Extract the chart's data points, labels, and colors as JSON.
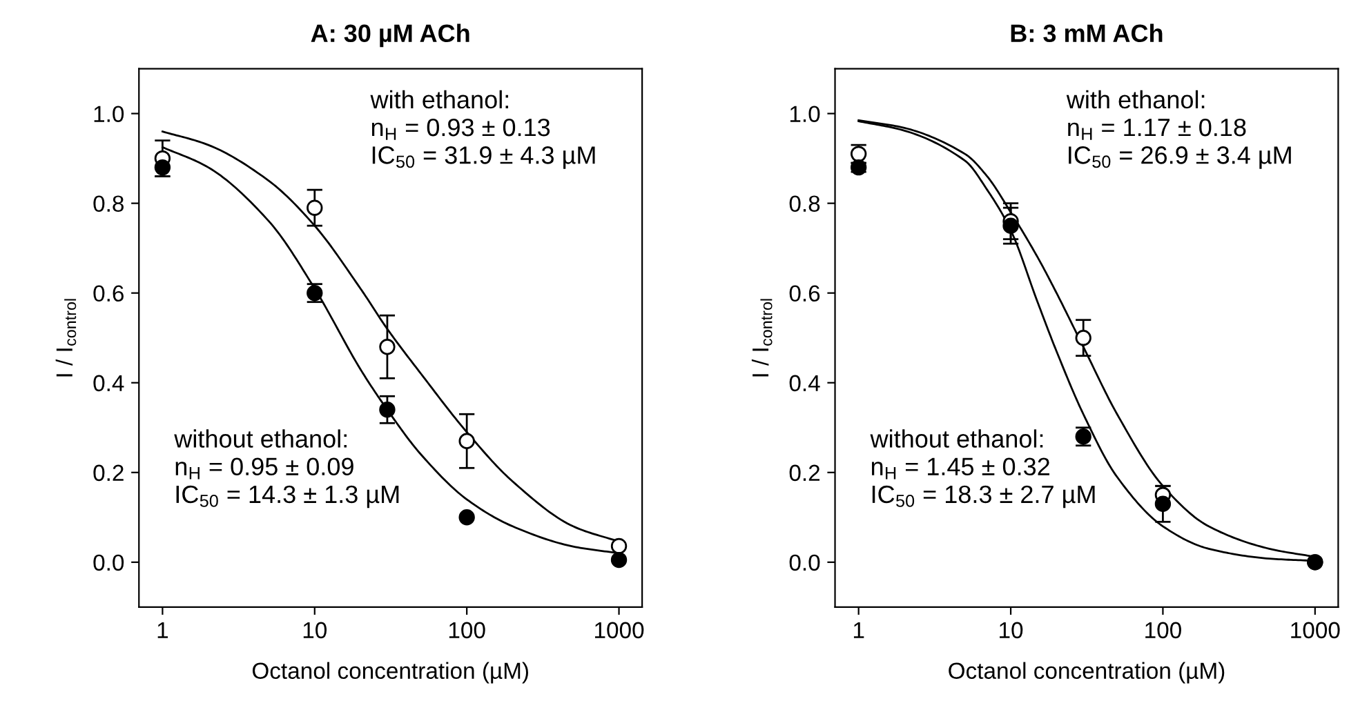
{
  "chart_data": [
    {
      "type": "scatter",
      "title": "A: 30 µM ACh",
      "xlabel": "Octanol concentration (µM)",
      "ylabel": "I / I$_{control}$",
      "log": "x",
      "xlim": [
        0.7,
        1420
      ],
      "xticks": [
        1,
        10,
        100,
        1000
      ],
      "ylim": [
        -0.1,
        1.1
      ],
      "yticks": [
        {
          "value": 0,
          "label": "0.0"
        },
        {
          "value": 0.2,
          "label": "0.2"
        },
        {
          "value": 0.4,
          "label": "0.4"
        },
        {
          "value": 0.6,
          "label": "0.6"
        },
        {
          "value": 0.8,
          "label": "0.8"
        },
        {
          "value": 1,
          "label": "1.0"
        }
      ],
      "grid": false,
      "legend": false,
      "annotations": [
        "with ethanol:\nn$_{H}$ = 0.93 ± 0.13\nIC$_{50}$ = 31.9 ± 4.3 µM",
        "without ethanol:\nn$_{H}$ = 0.95 ± 0.09\nIC$_{50}$ = 14.3 ± 1.3 µM"
      ],
      "series": [
        {
          "type": "line",
          "color": "#000000",
          "line_style": "solid",
          "x": [
            1,
            2,
            5,
            10,
            20,
            30,
            50,
            100,
            200,
            500,
            1000
          ],
          "values": [
            0.96,
            0.93,
            0.85,
            0.75,
            0.61,
            0.52,
            0.42,
            0.29,
            0.18,
            0.08,
            0.046
          ]
        },
        {
          "type": "line",
          "color": "#000000",
          "line_style": "solid",
          "x": [
            1,
            2,
            5,
            10,
            20,
            30,
            50,
            100,
            200,
            500,
            1000
          ],
          "values": [
            0.925,
            0.88,
            0.76,
            0.61,
            0.43,
            0.34,
            0.24,
            0.14,
            0.08,
            0.035,
            0.02
          ]
        },
        {
          "marker": "circle",
          "color": "#ffffff",
          "x": [
            1,
            10,
            30,
            100,
            1000
          ],
          "values": [
            0.9,
            0.79,
            0.48,
            0.27,
            0.036
          ],
          "errors": [
            0.04,
            0.04,
            0.07,
            0.06,
            null
          ]
        },
        {
          "marker": "circle",
          "color": "#000000",
          "x": [
            1,
            10,
            30,
            100,
            1000
          ],
          "values": [
            0.88,
            0.6,
            0.34,
            0.1,
            0.005
          ],
          "errors": [
            0.02,
            0.02,
            0.03,
            null,
            null
          ]
        }
      ]
    },
    {
      "type": "scatter",
      "title": "B: 3 mM ACh",
      "xlabel": "Octanol concentration (µM)",
      "ylabel": "I / I$_{control}$",
      "log": "x",
      "xlim": [
        0.7,
        1420
      ],
      "xticks": [
        1,
        10,
        100,
        1000
      ],
      "ylim": [
        -0.1,
        1.1
      ],
      "yticks": [
        {
          "value": 0,
          "label": "0.0"
        },
        {
          "value": 0.2,
          "label": "0.2"
        },
        {
          "value": 0.4,
          "label": "0.4"
        },
        {
          "value": 0.6,
          "label": "0.6"
        },
        {
          "value": 0.8,
          "label": "0.8"
        },
        {
          "value": 1,
          "label": "1.0"
        }
      ],
      "grid": false,
      "legend": false,
      "annotations": [
        "with ethanol:\nn$_{H}$ = 1.17 ± 0.18\nIC$_{50}$ = 26.9 ± 3.4 µM",
        "without ethanol:\nn$_{H}$ = 1.45 ± 0.32\nIC$_{50}$ = 18.3 ± 2.7 µM"
      ],
      "series": [
        {
          "type": "line",
          "color": "#000000",
          "line_style": "solid",
          "x": [
            1,
            2,
            5,
            7,
            10,
            15,
            20,
            30,
            50,
            100,
            200,
            500,
            1000
          ],
          "values": [
            0.985,
            0.968,
            0.91,
            0.86,
            0.78,
            0.68,
            0.6,
            0.48,
            0.33,
            0.17,
            0.08,
            0.03,
            0.012
          ]
        },
        {
          "type": "line",
          "color": "#000000",
          "line_style": "solid",
          "x": [
            1,
            2,
            5,
            7,
            10,
            15,
            20,
            30,
            50,
            100,
            200,
            500,
            1000
          ],
          "values": [
            0.983,
            0.962,
            0.895,
            0.83,
            0.74,
            0.58,
            0.47,
            0.33,
            0.19,
            0.08,
            0.03,
            0.008,
            0.003
          ]
        },
        {
          "marker": "circle",
          "color": "#ffffff",
          "x": [
            1,
            10,
            30,
            100,
            1000
          ],
          "values": [
            0.91,
            0.76,
            0.5,
            0.15,
            0.0
          ],
          "errors": [
            0.02,
            0.04,
            0.04,
            0.02,
            null
          ]
        },
        {
          "marker": "circle",
          "color": "#000000",
          "x": [
            1,
            10,
            30,
            100,
            1000
          ],
          "values": [
            0.88,
            0.75,
            0.28,
            0.13,
            0.0
          ],
          "errors": [
            0.01,
            0.04,
            0.02,
            0.04,
            null
          ]
        }
      ]
    }
  ]
}
